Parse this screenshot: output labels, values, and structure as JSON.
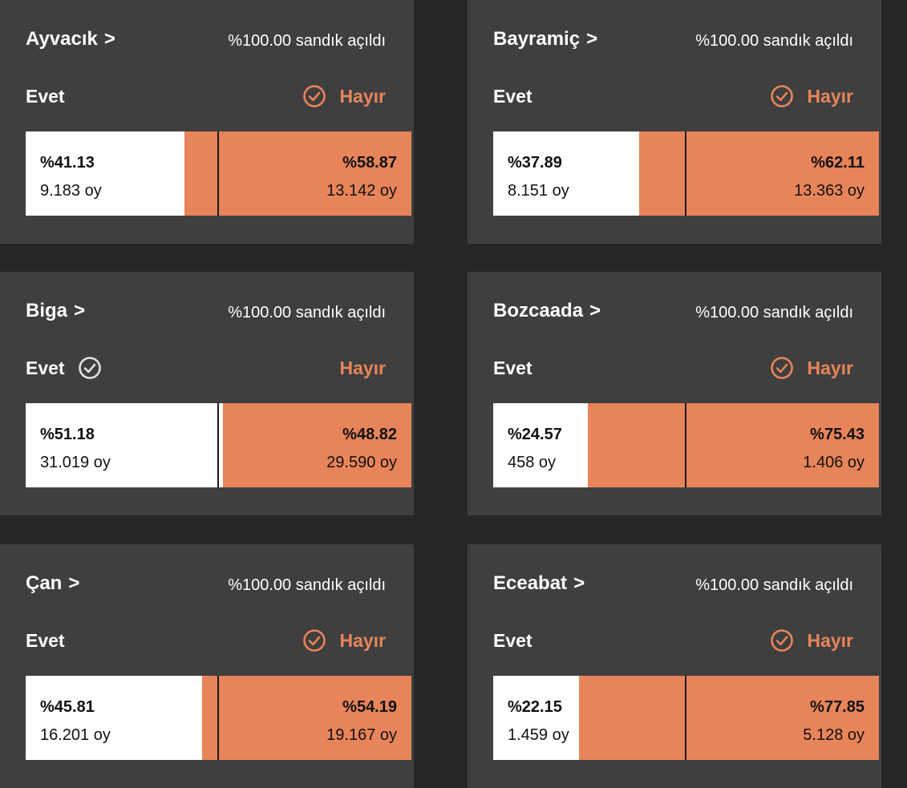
{
  "colors": {
    "background": "#262626",
    "card": "#3f3f3f",
    "hayir": "#e8845a",
    "evet_bar": "#ffffff",
    "winner_check_white": "#e0e0e0"
  },
  "icons": {
    "winner": "check-circle-icon"
  },
  "chevron": ">",
  "cards": [
    {
      "name": "Ayvacık",
      "status": "%100.00 sandık açıldı",
      "evet_label": "Evet",
      "hayir_label": "Hayır",
      "winner": "hayir",
      "evet_pct": "%41.13",
      "evet_votes": "9.183 oy",
      "hayir_pct": "%58.87",
      "hayir_votes": "13.142 oy",
      "evet_share": 41.13
    },
    {
      "name": "Bayramiç",
      "status": "%100.00 sandık açıldı",
      "evet_label": "Evet",
      "hayir_label": "Hayır",
      "winner": "hayir",
      "evet_pct": "%37.89",
      "evet_votes": "8.151 oy",
      "hayir_pct": "%62.11",
      "hayir_votes": "13.363 oy",
      "evet_share": 37.89
    },
    {
      "name": "Biga",
      "status": "%100.00 sandık açıldı",
      "evet_label": "Evet",
      "hayir_label": "Hayır",
      "winner": "evet",
      "evet_pct": "%51.18",
      "evet_votes": "31.019 oy",
      "hayir_pct": "%48.82",
      "hayir_votes": "29.590 oy",
      "evet_share": 51.18
    },
    {
      "name": "Bozcaada",
      "status": "%100.00 sandık açıldı",
      "evet_label": "Evet",
      "hayir_label": "Hayır",
      "winner": "hayir",
      "evet_pct": "%24.57",
      "evet_votes": "458 oy",
      "hayir_pct": "%75.43",
      "hayir_votes": "1.406 oy",
      "evet_share": 24.57
    },
    {
      "name": "Çan",
      "status": "%100.00 sandık açıldı",
      "evet_label": "Evet",
      "hayir_label": "Hayır",
      "winner": "hayir",
      "evet_pct": "%45.81",
      "evet_votes": "16.201 oy",
      "hayir_pct": "%54.19",
      "hayir_votes": "19.167 oy",
      "evet_share": 45.81
    },
    {
      "name": "Eceabat",
      "status": "%100.00 sandık açıldı",
      "evet_label": "Evet",
      "hayir_label": "Hayır",
      "winner": "hayir",
      "evet_pct": "%22.15",
      "evet_votes": "1.459 oy",
      "hayir_pct": "%77.85",
      "hayir_votes": "5.128 oy",
      "evet_share": 22.15
    }
  ]
}
